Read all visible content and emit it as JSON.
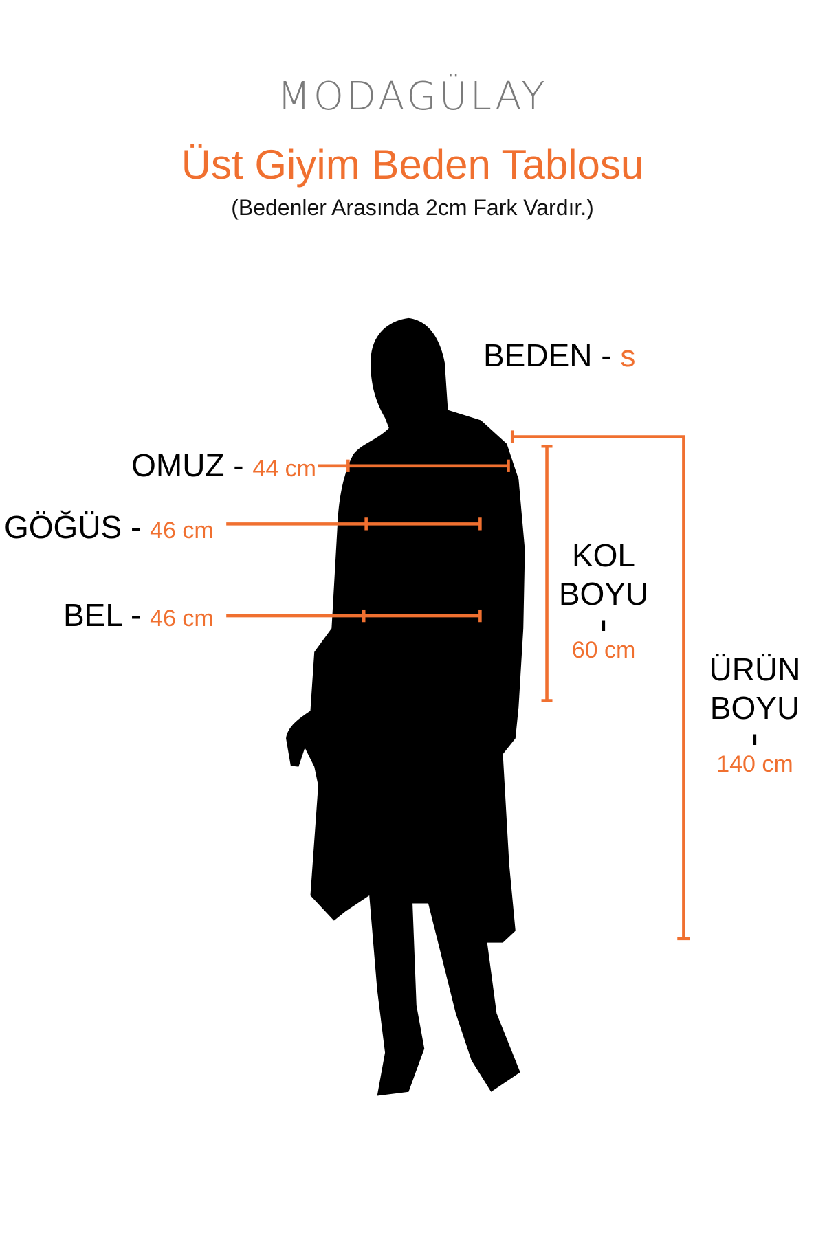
{
  "brand": {
    "logo_text": "MODAGÜLAY"
  },
  "header": {
    "title": "Üst Giyim Beden Tablosu",
    "subtitle": "(Bedenler Arasında 2cm Fark Vardır.)"
  },
  "size": {
    "label": "BEDEN -",
    "value": "s"
  },
  "measurements": {
    "shoulder": {
      "label": "OMUZ -",
      "value": "44 cm"
    },
    "chest": {
      "label": "GÖĞÜS -",
      "value": "46 cm"
    },
    "waist": {
      "label": "BEL -",
      "value": "46 cm"
    },
    "sleeve": {
      "label_line1": "KOL",
      "label_line2": "BOYU",
      "separator": "ı",
      "value": "60 cm"
    },
    "length": {
      "label_line1": "ÜRÜN",
      "label_line2": "BOYU",
      "separator": "ı",
      "value": "140 cm"
    }
  },
  "colors": {
    "accent": "#f07030",
    "logo": "#7b7b7b",
    "text": "#000000"
  }
}
